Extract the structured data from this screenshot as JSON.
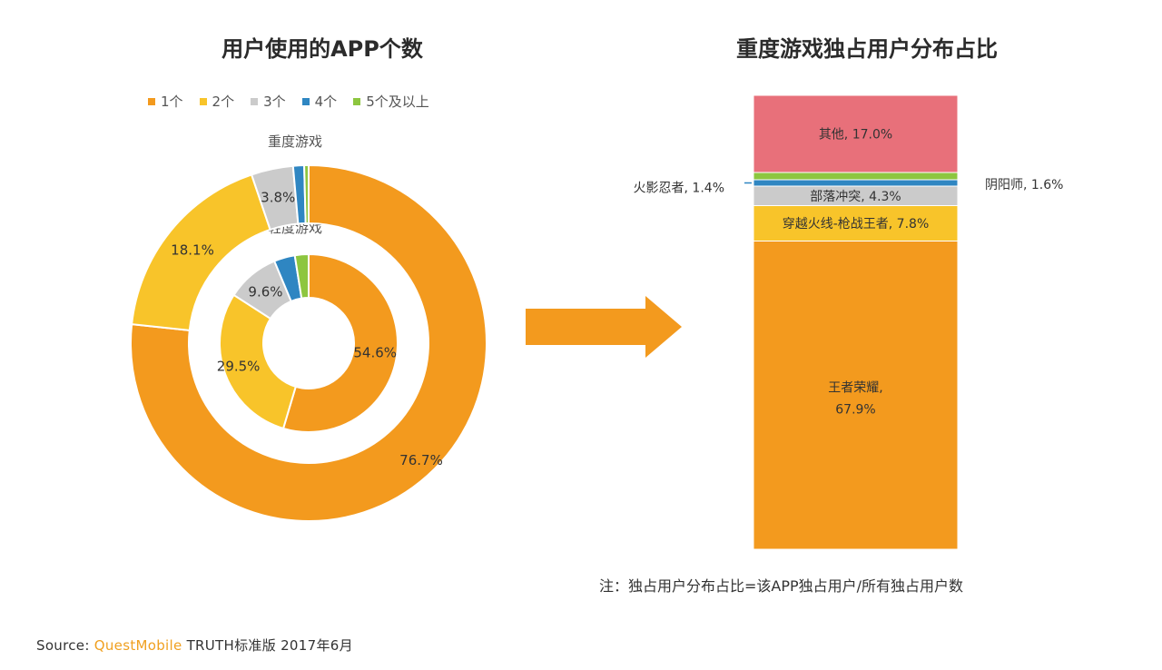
{
  "colors": {
    "one": "#F39A1E",
    "two": "#F8C42A",
    "three": "#CBCBCB",
    "four": "#2F86C2",
    "five_plus": "#8DC63F",
    "other": "#E8707A",
    "arrow": "#F39A1E"
  },
  "left_title": "用户使用的APP个数",
  "right_title": "重度游戏独占用户分布占比",
  "note": "注：独占用户分布占比=该APP独占用户/所有独占用户数",
  "source": {
    "label": "Source:",
    "brand": "QuestMobile",
    "rest": "TRUTH标准版 2017年6月"
  },
  "chart_data": [
    {
      "type": "donut",
      "title": "用户使用的APP个数",
      "legend": [
        "1个",
        "2个",
        "3个",
        "4个",
        "5个及以上"
      ],
      "series": [
        {
          "name": "重度游戏",
          "ring": "outer",
          "values": [
            76.7,
            18.1,
            3.8,
            1.0,
            0.4
          ],
          "labels": [
            "76.7%",
            "18.1%",
            "3.8%",
            "",
            ""
          ]
        },
        {
          "name": "轻度游戏",
          "ring": "inner",
          "values": [
            54.6,
            29.5,
            9.6,
            3.8,
            2.5
          ],
          "labels": [
            "54.6%",
            "29.5%",
            "9.6%",
            "",
            ""
          ]
        }
      ]
    },
    {
      "type": "stacked-bar",
      "title": "重度游戏独占用户分布占比",
      "segments": [
        {
          "name": "王者荣耀",
          "value": 67.9,
          "label_line1": "王者荣耀,",
          "label_line2": "67.9%",
          "label_pos": "inside",
          "color_key": "one"
        },
        {
          "name": "穿越火线-枪战王者",
          "value": 7.8,
          "label": "穿越火线-枪战王者, 7.8%",
          "label_pos": "inside",
          "color_key": "two"
        },
        {
          "name": "部落冲突",
          "value": 4.3,
          "label": "部落冲突, 4.3%",
          "label_pos": "inside",
          "color_key": "three"
        },
        {
          "name": "火影忍者",
          "value": 1.4,
          "label": "火影忍者, 1.4%",
          "label_pos": "left",
          "color_key": "four"
        },
        {
          "name": "阴阳师",
          "value": 1.6,
          "label": "阴阳师, 1.6%",
          "label_pos": "right",
          "color_key": "five_plus"
        },
        {
          "name": "其他",
          "value": 17.0,
          "label": "其他, 17.0%",
          "label_pos": "inside",
          "color_key": "other"
        }
      ]
    }
  ]
}
